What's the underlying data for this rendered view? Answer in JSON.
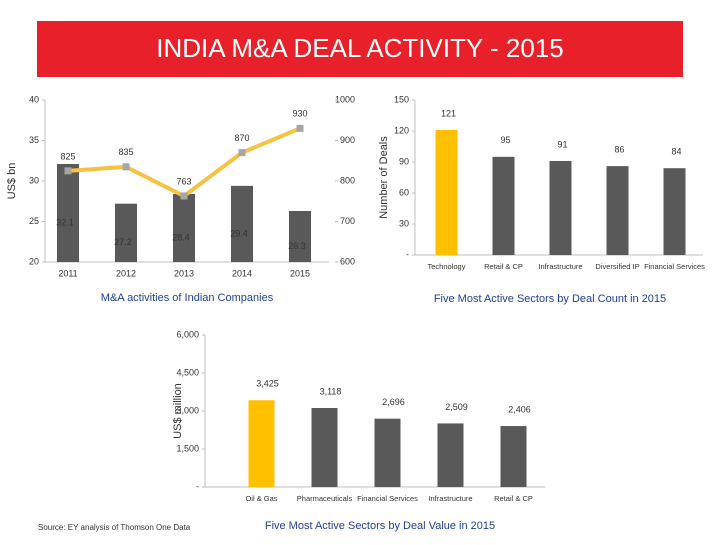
{
  "title": "INDIA M&A DEAL ACTIVITY - 2015",
  "source": "Source: EY analysis of Thomson One Data",
  "chart_data": [
    {
      "type": "combo",
      "categories": [
        "2011",
        "2012",
        "2013",
        "2014",
        "2015"
      ],
      "series": [
        {
          "type": "bar",
          "color": "#595959",
          "values": [
            32.1,
            27.2,
            28.4,
            29.4,
            26.3
          ]
        },
        {
          "type": "line",
          "axis": "y2",
          "color": "#f5c242",
          "marker_color": "#a6a6a6",
          "values": [
            825,
            835,
            763,
            870,
            930
          ]
        }
      ],
      "ylim": [
        20,
        40
      ],
      "yticks": [
        20,
        25,
        30,
        35,
        40
      ],
      "y2lim": [
        600,
        1000
      ],
      "y2ticks": [
        600,
        700,
        800,
        900,
        1000
      ],
      "ylabel": "US$ bn",
      "caption": "M&A activities of Indian Companies"
    },
    {
      "type": "bar",
      "categories": [
        "Technology",
        "Retail & CP",
        "Infrastructure",
        "Diversified IP",
        "Financial Services"
      ],
      "values": [
        121,
        95,
        91,
        86,
        84
      ],
      "colors": [
        "#ffc000",
        "#595959",
        "#595959",
        "#595959",
        "#595959"
      ],
      "ylim": [
        0,
        150
      ],
      "yticks": [
        {
          "value": 0,
          "label": "-"
        },
        30,
        60,
        90,
        120,
        150
      ],
      "ylabel": "Number of Deals",
      "caption": "Five Most Active Sectors by Deal Count in 2015"
    },
    {
      "type": "bar",
      "categories": [
        "Oil & Gas",
        "Pharmaceuticals",
        "Financial Services",
        "Infrastructure",
        "Retail & CP"
      ],
      "values": [
        3425,
        3118,
        2696,
        2509,
        2406
      ],
      "value_labels": [
        "3,425",
        "3,118",
        "2,696",
        "2,509",
        "2,406"
      ],
      "colors": [
        "#ffc000",
        "#595959",
        "#595959",
        "#595959",
        "#595959"
      ],
      "ylim": [
        0,
        6000
      ],
      "yticks": [
        {
          "value": 0,
          "label": "-"
        },
        {
          "value": 1500,
          "label": "1,500"
        },
        {
          "value": 3000,
          "label": "3,000"
        },
        {
          "value": 4500,
          "label": "4,500"
        },
        {
          "value": 6000,
          "label": "6,000"
        }
      ],
      "ylabel": "US$ million",
      "caption": "Five Most Active Sectors by Deal Value in 2015"
    }
  ]
}
